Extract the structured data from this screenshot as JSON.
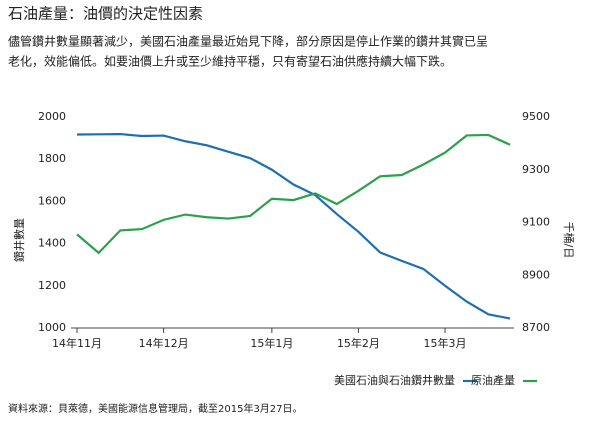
{
  "chart_data": {
    "type": "line",
    "title": "石油產量：油價的決定性因素",
    "subtitle": [
      "儘管鑽井數量顯著減少，美國石油產量最近始見下降，部分原因是停止作業的鑽井其實已呈",
      "老化，效能偏低。如要油價上升或至少維持平穩，只有寄望石油供應持續大幅下跌。"
    ],
    "ylabel": "鑽井數量",
    "y2label": "千桶/日",
    "categories": [
      "14年11月",
      null,
      null,
      null,
      "14年12月",
      null,
      null,
      null,
      null,
      "15年1月",
      null,
      null,
      null,
      "15年2月",
      null,
      null,
      null,
      "15年3月",
      null,
      null,
      null
    ],
    "series": [
      {
        "name": "美國石油與石油鑽井數量",
        "color": "#1f6fb0",
        "values": [
          1917,
          1918,
          1919,
          1910,
          1912,
          1885,
          1866,
          1835,
          1805,
          1750,
          1680,
          1630,
          1540,
          1456,
          1358,
          1318,
          1280,
          1200,
          1125,
          1065,
          1045
        ]
      },
      {
        "name": "原油產量",
        "color": "#2ca04c",
        "axis": "y2",
        "values": [
          9055,
          8985,
          9070,
          9075,
          9110,
          9130,
          9120,
          9115,
          9125,
          9190,
          9185,
          9210,
          9170,
          9220,
          9275,
          9280,
          9320,
          9365,
          9430,
          9432,
          9395
        ]
      }
    ],
    "ylim": [
      1000,
      2000
    ],
    "yticks": [
      1000,
      1200,
      1400,
      1600,
      1800,
      2000
    ],
    "y2lim": [
      8700,
      9500
    ],
    "y2ticks": [
      8700,
      8900,
      9100,
      9300,
      9500
    ],
    "source": "資料來源：貝萊德，美國能源信息管理局，截至2015年3月27日。"
  }
}
